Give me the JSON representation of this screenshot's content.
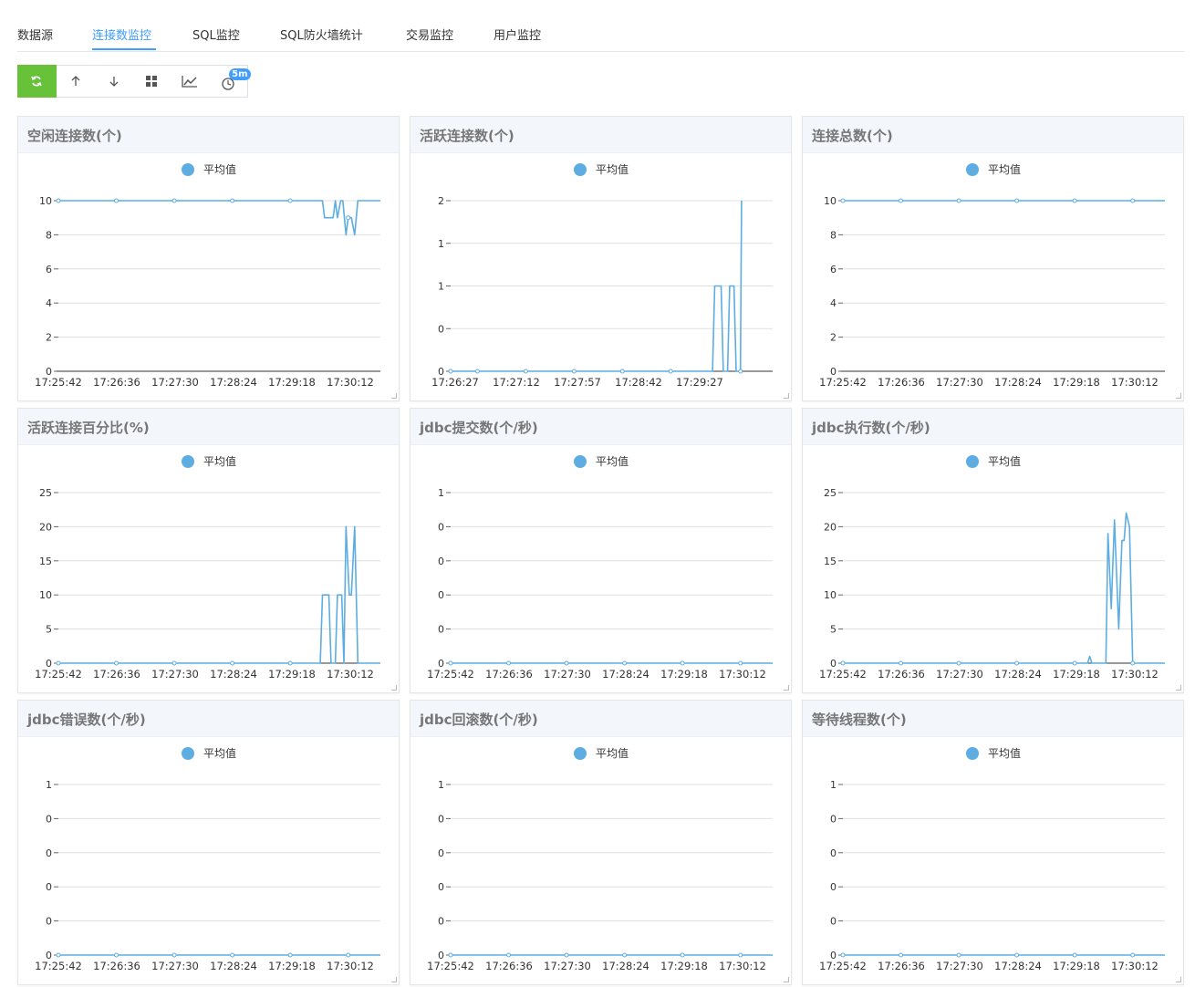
{
  "tabs": [
    {
      "label": "数据源",
      "active": false
    },
    {
      "label": "连接数监控",
      "active": true
    },
    {
      "label": "SQL监控",
      "active": false
    },
    {
      "label": "SQL防火墙统计",
      "active": false
    },
    {
      "label": "交易监控",
      "active": false
    },
    {
      "label": "用户监控",
      "active": false
    }
  ],
  "toolbar": {
    "buttons": [
      {
        "name": "refresh-icon",
        "glyph": "⟳"
      },
      {
        "name": "arrow-up-icon",
        "glyph": "↑"
      },
      {
        "name": "arrow-down-icon",
        "glyph": "↓"
      },
      {
        "name": "grid-icon",
        "glyph": "▦"
      },
      {
        "name": "line-chart-icon",
        "glyph": "📈"
      },
      {
        "name": "timer-icon",
        "glyph": "◷"
      }
    ],
    "interval_badge": "5m",
    "accent": "#67c23a"
  },
  "series_color": "#5dade2",
  "legend_label": "平均值",
  "chart_data": [
    {
      "type": "line",
      "title": "空闲连接数(个)",
      "series_name": "平均值",
      "y_ticks": [
        "10",
        "8",
        "6",
        "4",
        "2",
        "0"
      ],
      "y_max": 10,
      "x_ticks": [
        "17:25:42",
        "17:26:36",
        "17:27:30",
        "17:28:24",
        "17:29:18",
        "17:30:12"
      ],
      "x_range": [
        0,
        300
      ],
      "points": [
        [
          0,
          10
        ],
        [
          54,
          10
        ],
        [
          108,
          10
        ],
        [
          162,
          10
        ],
        [
          216,
          10
        ],
        [
          246,
          10
        ],
        [
          248,
          9
        ],
        [
          252,
          9
        ],
        [
          256,
          9
        ],
        [
          258,
          10
        ],
        [
          260,
          9
        ],
        [
          263,
          10
        ],
        [
          265,
          10
        ],
        [
          268,
          8
        ],
        [
          270,
          9
        ],
        [
          273,
          9
        ],
        [
          276,
          8
        ],
        [
          279,
          10
        ],
        [
          300,
          10
        ]
      ]
    },
    {
      "type": "line",
      "title": "活跃连接数(个)",
      "series_name": "平均值",
      "y_ticks": [
        "2",
        "1",
        "1",
        "0",
        "0"
      ],
      "y_max": 2,
      "x_ticks": [
        "17:26:27",
        "17:27:12",
        "17:27:57",
        "17:28:42",
        "17:29:27"
      ],
      "x_range": [
        0,
        300
      ],
      "points": [
        [
          0,
          0
        ],
        [
          25,
          0
        ],
        [
          70,
          0
        ],
        [
          115,
          0
        ],
        [
          160,
          0
        ],
        [
          205,
          0
        ],
        [
          244,
          0
        ],
        [
          246,
          1
        ],
        [
          252,
          1
        ],
        [
          254,
          0
        ],
        [
          258,
          0
        ],
        [
          260,
          1
        ],
        [
          264,
          1
        ],
        [
          266,
          0
        ],
        [
          270,
          0
        ],
        [
          271,
          2
        ]
      ]
    },
    {
      "type": "line",
      "title": "连接总数(个)",
      "series_name": "平均值",
      "y_ticks": [
        "10",
        "8",
        "6",
        "4",
        "2",
        "0"
      ],
      "y_max": 10,
      "x_ticks": [
        "17:25:42",
        "17:26:36",
        "17:27:30",
        "17:28:24",
        "17:29:18",
        "17:30:12"
      ],
      "x_range": [
        0,
        300
      ],
      "points": [
        [
          0,
          10
        ],
        [
          54,
          10
        ],
        [
          108,
          10
        ],
        [
          162,
          10
        ],
        [
          216,
          10
        ],
        [
          270,
          10
        ],
        [
          300,
          10
        ]
      ]
    },
    {
      "type": "line",
      "title": "活跃连接百分比(%)",
      "series_name": "平均值",
      "y_ticks": [
        "25",
        "20",
        "15",
        "10",
        "5",
        "0"
      ],
      "y_max": 25,
      "x_ticks": [
        "17:25:42",
        "17:26:36",
        "17:27:30",
        "17:28:24",
        "17:29:18",
        "17:30:12"
      ],
      "x_range": [
        0,
        300
      ],
      "points": [
        [
          0,
          0
        ],
        [
          54,
          0
        ],
        [
          108,
          0
        ],
        [
          162,
          0
        ],
        [
          216,
          0
        ],
        [
          244,
          0
        ],
        [
          246,
          10
        ],
        [
          252,
          10
        ],
        [
          254,
          0
        ],
        [
          258,
          0
        ],
        [
          260,
          10
        ],
        [
          264,
          10
        ],
        [
          266,
          0
        ],
        [
          268,
          20
        ],
        [
          271,
          10
        ],
        [
          273,
          10
        ],
        [
          276,
          20
        ],
        [
          279,
          0
        ],
        [
          300,
          0
        ]
      ]
    },
    {
      "type": "line",
      "title": "jdbc提交数(个/秒)",
      "series_name": "平均值",
      "y_ticks": [
        "1",
        "0",
        "0",
        "0",
        "0",
        "0"
      ],
      "y_max": 1,
      "x_ticks": [
        "17:25:42",
        "17:26:36",
        "17:27:30",
        "17:28:24",
        "17:29:18",
        "17:30:12"
      ],
      "x_range": [
        0,
        300
      ],
      "points": [
        [
          0,
          0
        ],
        [
          54,
          0
        ],
        [
          108,
          0
        ],
        [
          162,
          0
        ],
        [
          216,
          0
        ],
        [
          270,
          0
        ],
        [
          300,
          0
        ]
      ]
    },
    {
      "type": "line",
      "title": "jdbc执行数(个/秒)",
      "series_name": "平均值",
      "y_ticks": [
        "25",
        "20",
        "15",
        "10",
        "5",
        "0"
      ],
      "y_max": 25,
      "x_ticks": [
        "17:25:42",
        "17:26:36",
        "17:27:30",
        "17:28:24",
        "17:29:18",
        "17:30:12"
      ],
      "x_range": [
        0,
        300
      ],
      "points": [
        [
          0,
          0
        ],
        [
          54,
          0
        ],
        [
          108,
          0
        ],
        [
          162,
          0
        ],
        [
          216,
          0
        ],
        [
          228,
          0
        ],
        [
          230,
          1
        ],
        [
          232,
          0
        ],
        [
          245,
          0
        ],
        [
          247,
          19
        ],
        [
          250,
          8
        ],
        [
          253,
          21
        ],
        [
          257,
          5
        ],
        [
          260,
          18
        ],
        [
          262,
          18
        ],
        [
          264,
          22
        ],
        [
          267,
          20
        ],
        [
          270,
          0
        ],
        [
          300,
          0
        ]
      ]
    },
    {
      "type": "line",
      "title": "jdbc错误数(个/秒)",
      "series_name": "平均值",
      "y_ticks": [
        "1",
        "0",
        "0",
        "0",
        "0",
        "0"
      ],
      "y_max": 1,
      "x_ticks": [
        "17:25:42",
        "17:26:36",
        "17:27:30",
        "17:28:24",
        "17:29:18",
        "17:30:12"
      ],
      "x_range": [
        0,
        300
      ],
      "points": [
        [
          0,
          0
        ],
        [
          54,
          0
        ],
        [
          108,
          0
        ],
        [
          162,
          0
        ],
        [
          216,
          0
        ],
        [
          270,
          0
        ],
        [
          300,
          0
        ]
      ]
    },
    {
      "type": "line",
      "title": "jdbc回滚数(个/秒)",
      "series_name": "平均值",
      "y_ticks": [
        "1",
        "0",
        "0",
        "0",
        "0",
        "0"
      ],
      "y_max": 1,
      "x_ticks": [
        "17:25:42",
        "17:26:36",
        "17:27:30",
        "17:28:24",
        "17:29:18",
        "17:30:12"
      ],
      "x_range": [
        0,
        300
      ],
      "points": [
        [
          0,
          0
        ],
        [
          54,
          0
        ],
        [
          108,
          0
        ],
        [
          162,
          0
        ],
        [
          216,
          0
        ],
        [
          270,
          0
        ],
        [
          300,
          0
        ]
      ]
    },
    {
      "type": "line",
      "title": "等待线程数(个)",
      "series_name": "平均值",
      "y_ticks": [
        "1",
        "0",
        "0",
        "0",
        "0",
        "0"
      ],
      "y_max": 1,
      "x_ticks": [
        "17:25:42",
        "17:26:36",
        "17:27:30",
        "17:28:24",
        "17:29:18",
        "17:30:12"
      ],
      "x_range": [
        0,
        300
      ],
      "points": [
        [
          0,
          0
        ],
        [
          54,
          0
        ],
        [
          108,
          0
        ],
        [
          162,
          0
        ],
        [
          216,
          0
        ],
        [
          270,
          0
        ],
        [
          300,
          0
        ]
      ]
    }
  ]
}
